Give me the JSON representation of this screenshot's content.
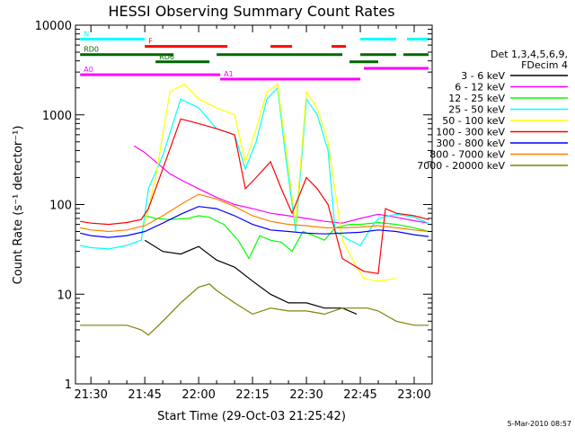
{
  "chart_data": {
    "type": "line",
    "title": "HESSI Observing Summary Count Rates",
    "xlabel": "Start Time (29-Oct-03 21:25:42)",
    "ylabel": "Count Rate (s⁻¹ detector⁻¹)",
    "x_ticks": [
      "21:30",
      "21:45",
      "22:00",
      "22:15",
      "22:30",
      "22:45",
      "23:00"
    ],
    "y_ticks": [
      "1",
      "10",
      "100",
      "1000",
      "10000"
    ],
    "y_scale": "log",
    "ylim": [
      1,
      10000
    ],
    "xlim": [
      "21:25:42",
      "23:05:00"
    ],
    "grid": false,
    "legend_position": "right",
    "legend_header": [
      "Det 1,3,4,5,6,9,",
      "FDecim 4"
    ],
    "footer_date": "5-Mar-2010 08:57",
    "series": [
      {
        "name": "3 - 6 keV",
        "color": "#000000",
        "points": [
          [
            "21:45",
            40
          ],
          [
            "21:50",
            30
          ],
          [
            "21:55",
            28
          ],
          [
            "22:00",
            34
          ],
          [
            "22:05",
            24
          ],
          [
            "22:10",
            20
          ],
          [
            "22:15",
            14
          ],
          [
            "22:20",
            10
          ],
          [
            "22:25",
            8
          ],
          [
            "22:30",
            8
          ],
          [
            "22:35",
            7
          ],
          [
            "22:40",
            7
          ],
          [
            "22:44",
            6
          ]
        ]
      },
      {
        "name": "6 - 12 keV",
        "color": "#ff00ff",
        "points": [
          [
            "21:42",
            450
          ],
          [
            "21:45",
            380
          ],
          [
            "21:48",
            300
          ],
          [
            "21:52",
            220
          ],
          [
            "21:56",
            180
          ],
          [
            "22:00",
            150
          ],
          [
            "22:05",
            120
          ],
          [
            "22:10",
            100
          ],
          [
            "22:15",
            90
          ],
          [
            "22:20",
            80
          ],
          [
            "22:25",
            75
          ],
          [
            "22:30",
            70
          ],
          [
            "22:35",
            65
          ],
          [
            "22:40",
            62
          ],
          [
            "22:45",
            70
          ],
          [
            "22:50",
            78
          ],
          [
            "22:55",
            72
          ],
          [
            "23:00",
            66
          ],
          [
            "23:04",
            62
          ]
        ]
      },
      {
        "name": "12 - 25 keV",
        "color": "#00ff00",
        "points": [
          [
            "21:45",
            75
          ],
          [
            "21:48",
            70
          ],
          [
            "21:52",
            68
          ],
          [
            "21:57",
            70
          ],
          [
            "22:00",
            75
          ],
          [
            "22:03",
            72
          ],
          [
            "22:07",
            60
          ],
          [
            "22:11",
            40
          ],
          [
            "22:14",
            25
          ],
          [
            "22:17",
            45
          ],
          [
            "22:20",
            40
          ],
          [
            "22:23",
            38
          ],
          [
            "22:26",
            30
          ],
          [
            "22:29",
            50
          ],
          [
            "22:32",
            45
          ],
          [
            "22:35",
            40
          ],
          [
            "22:38",
            55
          ],
          [
            "22:42",
            60
          ],
          [
            "22:45",
            60
          ],
          [
            "22:50",
            63
          ],
          [
            "22:55",
            60
          ],
          [
            "23:00",
            55
          ],
          [
            "23:04",
            50
          ]
        ]
      },
      {
        "name": "25 - 50 keV",
        "color": "#00ffff",
        "points": [
          [
            "21:27",
            35
          ],
          [
            "21:30",
            33
          ],
          [
            "21:35",
            32
          ],
          [
            "21:40",
            35
          ],
          [
            "21:44",
            40
          ],
          [
            "21:46",
            150
          ],
          [
            "21:50",
            350
          ],
          [
            "21:55",
            1500
          ],
          [
            "22:00",
            1200
          ],
          [
            "22:05",
            700
          ],
          [
            "22:10",
            600
          ],
          [
            "22:13",
            250
          ],
          [
            "22:16",
            500
          ],
          [
            "22:19",
            1500
          ],
          [
            "22:22",
            2000
          ],
          [
            "22:24",
            400
          ],
          [
            "22:27",
            50
          ],
          [
            "22:30",
            1500
          ],
          [
            "22:33",
            1000
          ],
          [
            "22:36",
            400
          ],
          [
            "22:38",
            50
          ],
          [
            "22:42",
            40
          ],
          [
            "22:45",
            35
          ],
          [
            "22:48",
            55
          ],
          [
            "22:50",
            70
          ],
          [
            "22:55",
            78
          ],
          [
            "23:00",
            72
          ],
          [
            "23:04",
            62
          ]
        ]
      },
      {
        "name": "50 - 100 keV",
        "color": "#ffff00",
        "points": [
          [
            "21:45",
            60
          ],
          [
            "21:48",
            200
          ],
          [
            "21:52",
            1800
          ],
          [
            "21:56",
            2200
          ],
          [
            "22:00",
            1500
          ],
          [
            "22:05",
            1200
          ],
          [
            "22:10",
            1000
          ],
          [
            "22:13",
            300
          ],
          [
            "22:16",
            700
          ],
          [
            "22:19",
            1800
          ],
          [
            "22:22",
            2200
          ],
          [
            "22:24",
            500
          ],
          [
            "22:27",
            60
          ],
          [
            "22:30",
            1800
          ],
          [
            "22:33",
            1200
          ],
          [
            "22:36",
            500
          ],
          [
            "22:40",
            40
          ],
          [
            "22:44",
            20
          ],
          [
            "22:46",
            15
          ],
          [
            "22:50",
            14
          ],
          [
            "22:55",
            15
          ]
        ]
      },
      {
        "name": "100 - 300 keV",
        "color": "#ff0000",
        "points": [
          [
            "21:27",
            65
          ],
          [
            "21:30",
            62
          ],
          [
            "21:35",
            60
          ],
          [
            "21:40",
            63
          ],
          [
            "21:44",
            68
          ],
          [
            "21:46",
            90
          ],
          [
            "21:50",
            250
          ],
          [
            "21:55",
            900
          ],
          [
            "22:00",
            800
          ],
          [
            "22:05",
            700
          ],
          [
            "22:10",
            600
          ],
          [
            "22:13",
            150
          ],
          [
            "22:16",
            200
          ],
          [
            "22:20",
            300
          ],
          [
            "22:23",
            150
          ],
          [
            "22:26",
            80
          ],
          [
            "22:30",
            200
          ],
          [
            "22:33",
            150
          ],
          [
            "22:36",
            100
          ],
          [
            "22:40",
            25
          ],
          [
            "22:44",
            20
          ],
          [
            "22:46",
            18
          ],
          [
            "22:50",
            17
          ],
          [
            "22:52",
            90
          ],
          [
            "22:55",
            80
          ],
          [
            "23:00",
            75
          ],
          [
            "23:04",
            68
          ]
        ]
      },
      {
        "name": "300 - 800 keV",
        "color": "#0000ff",
        "points": [
          [
            "21:27",
            48
          ],
          [
            "21:30",
            45
          ],
          [
            "21:35",
            43
          ],
          [
            "21:40",
            45
          ],
          [
            "21:45",
            50
          ],
          [
            "21:50",
            62
          ],
          [
            "21:55",
            78
          ],
          [
            "22:00",
            95
          ],
          [
            "22:05",
            90
          ],
          [
            "22:10",
            75
          ],
          [
            "22:15",
            60
          ],
          [
            "22:20",
            52
          ],
          [
            "22:25",
            50
          ],
          [
            "22:30",
            48
          ],
          [
            "22:35",
            47
          ],
          [
            "22:40",
            48
          ],
          [
            "22:45",
            49
          ],
          [
            "22:50",
            52
          ],
          [
            "22:55",
            50
          ],
          [
            "23:00",
            46
          ],
          [
            "23:04",
            44
          ]
        ]
      },
      {
        "name": "800 - 7000 keV",
        "color": "#ff8000",
        "points": [
          [
            "21:27",
            55
          ],
          [
            "21:30",
            52
          ],
          [
            "21:35",
            50
          ],
          [
            "21:40",
            52
          ],
          [
            "21:45",
            58
          ],
          [
            "21:50",
            75
          ],
          [
            "21:55",
            100
          ],
          [
            "22:00",
            130
          ],
          [
            "22:05",
            115
          ],
          [
            "22:10",
            95
          ],
          [
            "22:15",
            75
          ],
          [
            "22:20",
            65
          ],
          [
            "22:25",
            60
          ],
          [
            "22:30",
            58
          ],
          [
            "22:35",
            55
          ],
          [
            "22:40",
            55
          ],
          [
            "22:45",
            56
          ],
          [
            "22:50",
            58
          ],
          [
            "22:55",
            55
          ],
          [
            "23:00",
            52
          ],
          [
            "23:04",
            50
          ]
        ]
      },
      {
        "name": "7000 - 20000 keV",
        "color": "#808000",
        "points": [
          [
            "21:27",
            4.5
          ],
          [
            "21:30",
            4.5
          ],
          [
            "21:35",
            4.5
          ],
          [
            "21:40",
            4.5
          ],
          [
            "21:44",
            4
          ],
          [
            "21:46",
            3.5
          ],
          [
            "21:50",
            5
          ],
          [
            "21:55",
            8
          ],
          [
            "22:00",
            12
          ],
          [
            "22:03",
            13
          ],
          [
            "22:05",
            11
          ],
          [
            "22:10",
            8
          ],
          [
            "22:15",
            6
          ],
          [
            "22:20",
            7
          ],
          [
            "22:25",
            6.5
          ],
          [
            "22:30",
            6.5
          ],
          [
            "22:35",
            6
          ],
          [
            "22:40",
            7
          ],
          [
            "22:44",
            7
          ],
          [
            "22:47",
            7
          ],
          [
            "22:50",
            6.5
          ],
          [
            "22:55",
            5
          ],
          [
            "23:00",
            4.5
          ],
          [
            "23:04",
            4.5
          ]
        ]
      }
    ],
    "status_bars": [
      {
        "label": "N",
        "color": "#00ffff",
        "segments": [
          [
            "21:27",
            "21:45"
          ],
          [
            "22:45",
            "22:55"
          ],
          [
            "22:58",
            "23:04"
          ]
        ],
        "level": 7000
      },
      {
        "label": "F",
        "color": "#ff0000",
        "segments": [
          [
            "21:45",
            "22:08"
          ],
          [
            "22:20",
            "22:26"
          ],
          [
            "22:37",
            "22:41"
          ]
        ],
        "level": 5800
      },
      {
        "label": "RD0",
        "color": "#006600",
        "segments": [
          [
            "21:27",
            "21:53"
          ],
          [
            "22:05",
            "22:40"
          ],
          [
            "22:45",
            "22:55"
          ],
          [
            "22:57",
            "23:04"
          ]
        ],
        "level": 4700
      },
      {
        "label": "RD6",
        "color": "#006600",
        "segments": [
          [
            "21:48",
            "22:03"
          ],
          [
            "22:42",
            "22:50"
          ]
        ],
        "level": 3900
      },
      {
        "label": "A0",
        "color": "#ff00ff",
        "segments": [
          [
            "21:27",
            "22:06"
          ]
        ],
        "level": 2800
      },
      {
        "label": "A1",
        "color": "#ff00ff",
        "segments": [
          [
            "22:06",
            "22:45"
          ]
        ],
        "level": 2500
      },
      {
        "label": "",
        "color": "#ff00ff",
        "segments": [
          [
            "22:46",
            "23:04"
          ]
        ],
        "level": 3300
      }
    ]
  }
}
